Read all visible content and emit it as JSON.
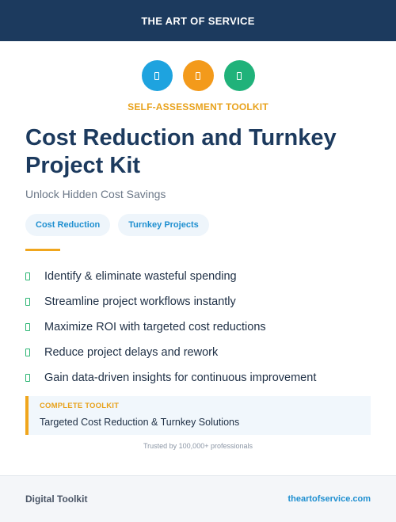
{
  "header": {
    "brand": "THE ART OF SERVICE"
  },
  "icons": [
    {
      "name": "document-icon",
      "color": "#1ea3df"
    },
    {
      "name": "document-icon",
      "color": "#f39a1b"
    },
    {
      "name": "document-icon",
      "color": "#20b27a"
    }
  ],
  "kicker": "SELF-ASSESSMENT TOOLKIT",
  "title": "Cost Reduction and Turnkey Project Kit",
  "subtitle": "Unlock Hidden Cost Savings",
  "tags": [
    "Cost Reduction",
    "Turnkey Projects"
  ],
  "benefits": [
    "Identify & eliminate wasteful spending",
    "Streamline project workflows instantly",
    "Maximize ROI with targeted cost reductions",
    "Reduce project delays and rework",
    "Gain data-driven insights for continuous improvement"
  ],
  "callout": {
    "label": "COMPLETE TOOLKIT",
    "text": "Targeted Cost Reduction & Turnkey Solutions"
  },
  "trust": "Trusted by 100,000+ professionals",
  "footer": {
    "left": "Digital Toolkit",
    "right": "theartofservice.com"
  }
}
